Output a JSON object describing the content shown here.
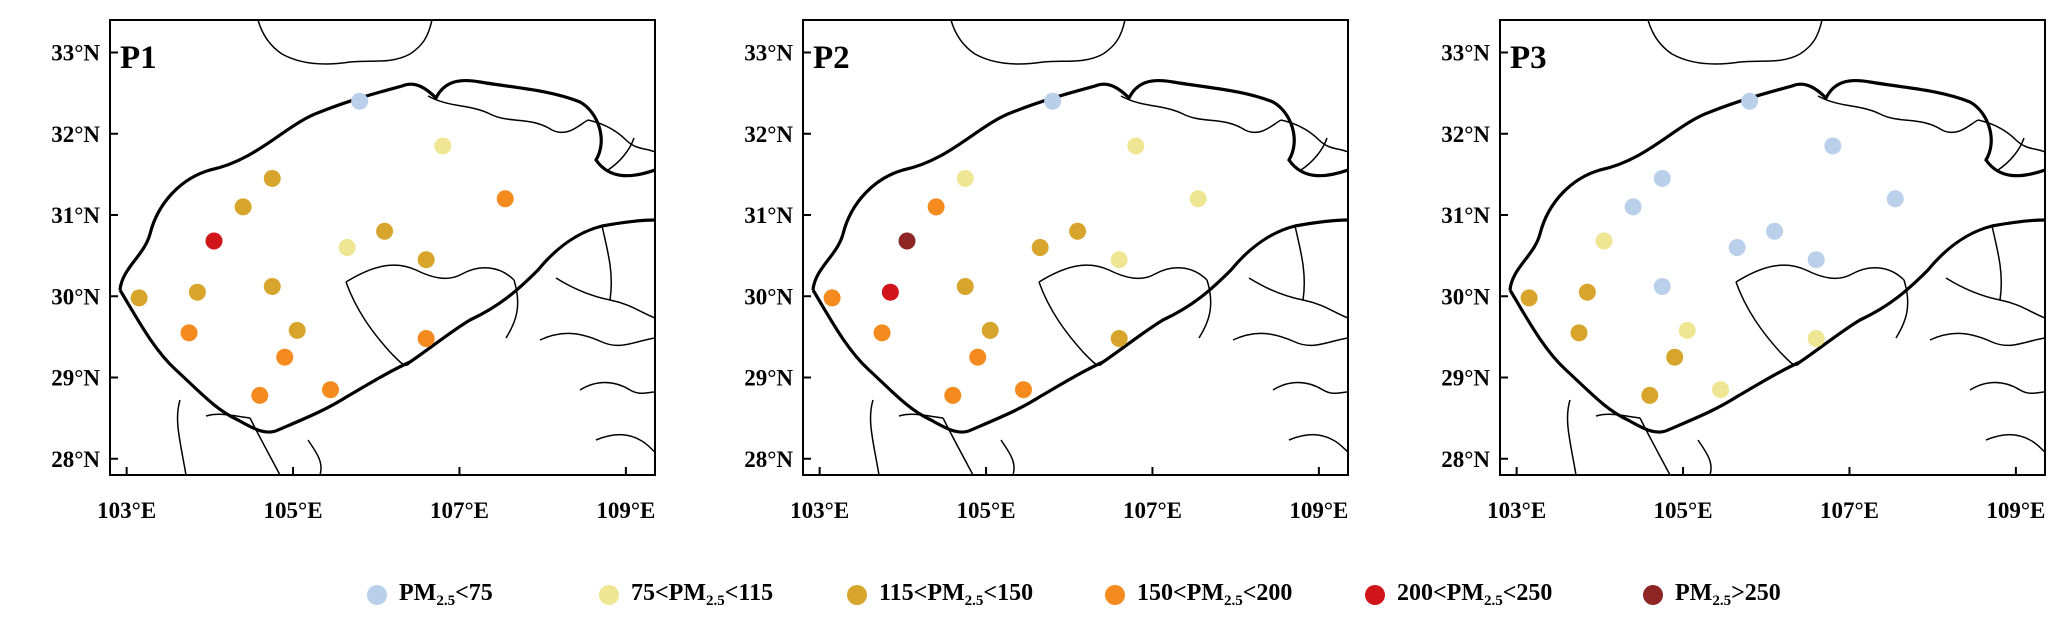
{
  "colors": {
    "c1": "#b9cfea",
    "c2": "#efe694",
    "c3": "#d8a52c",
    "c4": "#f58a1e",
    "c5": "#d1141a",
    "c6": "#8e2525"
  },
  "axes": {
    "lat_labels": [
      "33°N",
      "32°N",
      "31°N",
      "30°N",
      "29°N",
      "28°N"
    ],
    "lon_labels": [
      "103°E",
      "105°E",
      "107°E",
      "109°E"
    ]
  },
  "legend": [
    {
      "cls": "c1",
      "prefix": "PM",
      "sub": "2.5",
      "suffix": "<75"
    },
    {
      "cls": "c2",
      "prefix": "75<PM",
      "sub": "2.5",
      "suffix": "<115"
    },
    {
      "cls": "c3",
      "prefix": "115<PM",
      "sub": "2.5",
      "suffix": "<150"
    },
    {
      "cls": "c4",
      "prefix": "150<PM",
      "sub": "2.5",
      "suffix": "<200"
    },
    {
      "cls": "c5",
      "prefix": "200<PM",
      "sub": "2.5",
      "suffix": "<250"
    },
    {
      "cls": "c6",
      "prefix": "PM",
      "sub": "2.5",
      "suffix": ">250"
    }
  ],
  "panels": [
    {
      "label": "P1",
      "stations": [
        {
          "lon": 105.8,
          "lat": 32.4,
          "cls": "c1"
        },
        {
          "lon": 106.8,
          "lat": 31.85,
          "cls": "c2"
        },
        {
          "lon": 104.75,
          "lat": 31.45,
          "cls": "c3"
        },
        {
          "lon": 104.4,
          "lat": 31.1,
          "cls": "c3"
        },
        {
          "lon": 107.55,
          "lat": 31.2,
          "cls": "c4"
        },
        {
          "lon": 104.05,
          "lat": 30.68,
          "cls": "c5"
        },
        {
          "lon": 106.1,
          "lat": 30.8,
          "cls": "c3"
        },
        {
          "lon": 105.65,
          "lat": 30.6,
          "cls": "c2"
        },
        {
          "lon": 106.6,
          "lat": 30.45,
          "cls": "c3"
        },
        {
          "lon": 103.15,
          "lat": 29.98,
          "cls": "c3"
        },
        {
          "lon": 103.85,
          "lat": 30.05,
          "cls": "c3"
        },
        {
          "lon": 104.75,
          "lat": 30.12,
          "cls": "c3"
        },
        {
          "lon": 103.75,
          "lat": 29.55,
          "cls": "c4"
        },
        {
          "lon": 105.05,
          "lat": 29.58,
          "cls": "c3"
        },
        {
          "lon": 104.9,
          "lat": 29.25,
          "cls": "c4"
        },
        {
          "lon": 106.6,
          "lat": 29.48,
          "cls": "c4"
        },
        {
          "lon": 104.6,
          "lat": 28.78,
          "cls": "c4"
        },
        {
          "lon": 105.45,
          "lat": 28.85,
          "cls": "c4"
        }
      ]
    },
    {
      "label": "P2",
      "stations": [
        {
          "lon": 105.8,
          "lat": 32.4,
          "cls": "c1"
        },
        {
          "lon": 106.8,
          "lat": 31.85,
          "cls": "c2"
        },
        {
          "lon": 104.75,
          "lat": 31.45,
          "cls": "c2"
        },
        {
          "lon": 104.4,
          "lat": 31.1,
          "cls": "c4"
        },
        {
          "lon": 107.55,
          "lat": 31.2,
          "cls": "c2"
        },
        {
          "lon": 104.05,
          "lat": 30.68,
          "cls": "c6"
        },
        {
          "lon": 106.1,
          "lat": 30.8,
          "cls": "c3"
        },
        {
          "lon": 105.65,
          "lat": 30.6,
          "cls": "c3"
        },
        {
          "lon": 106.6,
          "lat": 30.45,
          "cls": "c2"
        },
        {
          "lon": 103.15,
          "lat": 29.98,
          "cls": "c4"
        },
        {
          "lon": 103.85,
          "lat": 30.05,
          "cls": "c5"
        },
        {
          "lon": 104.75,
          "lat": 30.12,
          "cls": "c3"
        },
        {
          "lon": 103.75,
          "lat": 29.55,
          "cls": "c4"
        },
        {
          "lon": 105.05,
          "lat": 29.58,
          "cls": "c3"
        },
        {
          "lon": 104.9,
          "lat": 29.25,
          "cls": "c4"
        },
        {
          "lon": 106.6,
          "lat": 29.48,
          "cls": "c3"
        },
        {
          "lon": 104.6,
          "lat": 28.78,
          "cls": "c4"
        },
        {
          "lon": 105.45,
          "lat": 28.85,
          "cls": "c4"
        }
      ]
    },
    {
      "label": "P3",
      "stations": [
        {
          "lon": 105.8,
          "lat": 32.4,
          "cls": "c1"
        },
        {
          "lon": 106.8,
          "lat": 31.85,
          "cls": "c1"
        },
        {
          "lon": 104.75,
          "lat": 31.45,
          "cls": "c1"
        },
        {
          "lon": 104.4,
          "lat": 31.1,
          "cls": "c1"
        },
        {
          "lon": 107.55,
          "lat": 31.2,
          "cls": "c1"
        },
        {
          "lon": 104.05,
          "lat": 30.68,
          "cls": "c2"
        },
        {
          "lon": 106.1,
          "lat": 30.8,
          "cls": "c1"
        },
        {
          "lon": 105.65,
          "lat": 30.6,
          "cls": "c1"
        },
        {
          "lon": 106.6,
          "lat": 30.45,
          "cls": "c1"
        },
        {
          "lon": 103.15,
          "lat": 29.98,
          "cls": "c3"
        },
        {
          "lon": 103.85,
          "lat": 30.05,
          "cls": "c3"
        },
        {
          "lon": 104.75,
          "lat": 30.12,
          "cls": "c1"
        },
        {
          "lon": 103.75,
          "lat": 29.55,
          "cls": "c3"
        },
        {
          "lon": 105.05,
          "lat": 29.58,
          "cls": "c2"
        },
        {
          "lon": 104.9,
          "lat": 29.25,
          "cls": "c3"
        },
        {
          "lon": 106.6,
          "lat": 29.48,
          "cls": "c2"
        },
        {
          "lon": 104.6,
          "lat": 28.78,
          "cls": "c3"
        },
        {
          "lon": 105.45,
          "lat": 28.85,
          "cls": "c2"
        }
      ]
    }
  ]
}
